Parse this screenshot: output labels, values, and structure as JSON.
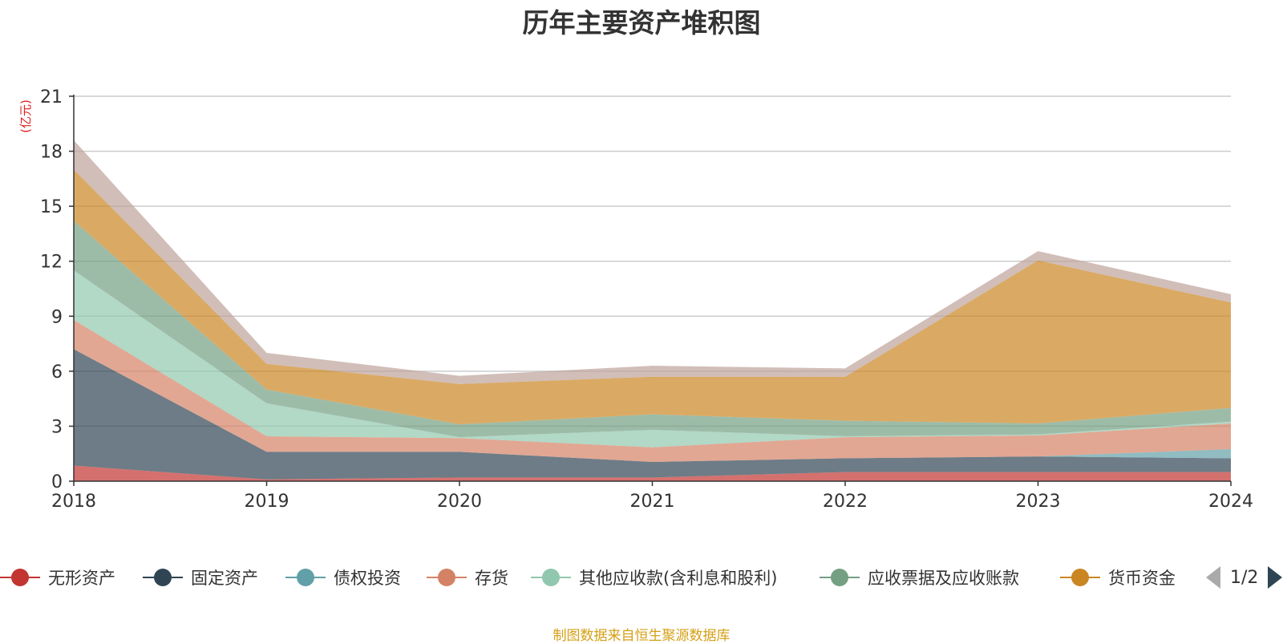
{
  "chart_data": {
    "type": "area",
    "stacked": true,
    "title": "历年主要资产堆积图",
    "unit_label": "(亿元)",
    "source_note": "制图数据来自恒生聚源数据库",
    "categories": [
      "2018",
      "2019",
      "2020",
      "2021",
      "2022",
      "2023",
      "2024"
    ],
    "ylim": [
      0,
      21
    ],
    "yticks": [
      0,
      3,
      6,
      9,
      12,
      15,
      18,
      21
    ],
    "grid": true,
    "legend_position": "bottom",
    "series": [
      {
        "name": "无形资产",
        "color": "#c23531",
        "values": [
          0.85,
          0.1,
          0.2,
          0.2,
          0.5,
          0.5,
          0.5
        ]
      },
      {
        "name": "固定资产",
        "color": "#2f4554",
        "values": [
          6.35,
          1.5,
          1.4,
          0.85,
          0.75,
          0.85,
          0.75
        ]
      },
      {
        "name": "债权投资",
        "color": "#61a0a8",
        "values": [
          0,
          0,
          0,
          0,
          0,
          0,
          0.5
        ]
      },
      {
        "name": "存货",
        "color": "#d48265",
        "values": [
          1.6,
          0.85,
          0.75,
          0.8,
          1.15,
          1.15,
          1.4
        ]
      },
      {
        "name": "其他应收款(含利息和股利)",
        "color": "#91c7ae",
        "values": [
          2.7,
          1.8,
          0.05,
          0.95,
          0.05,
          0.05,
          0.1
        ]
      },
      {
        "name": "应收票据及应收账款",
        "color": "#749f83",
        "values": [
          2.7,
          0.75,
          0.7,
          0.85,
          0.85,
          0.6,
          0.75
        ]
      },
      {
        "name": "货币资金",
        "color": "#ca8622",
        "values": [
          2.8,
          1.4,
          2.2,
          2.05,
          2.4,
          8.9,
          5.75
        ]
      },
      {
        "name": "",
        "color": "#bda29a",
        "values": [
          1.6,
          0.6,
          0.45,
          0.6,
          0.45,
          0.5,
          0.45
        ]
      }
    ],
    "legend_page": "1/2"
  }
}
